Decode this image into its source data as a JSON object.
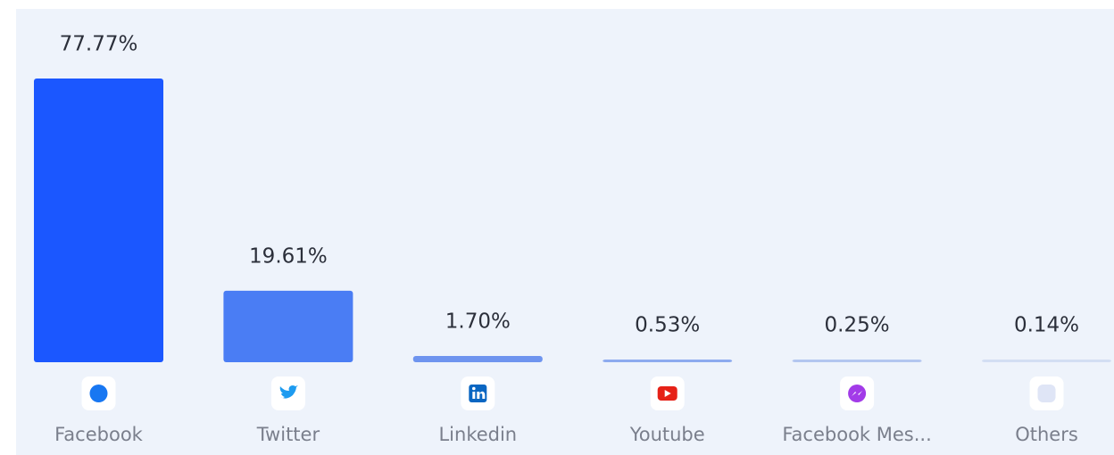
{
  "chart_data": {
    "type": "bar",
    "categories": [
      "Facebook",
      "Twitter",
      "Linkedin",
      "Youtube",
      "Facebook Mes...",
      "Others"
    ],
    "values": [
      77.77,
      19.61,
      1.7,
      0.53,
      0.25,
      0.14
    ],
    "value_labels": [
      "77.77%",
      "19.61%",
      "1.70%",
      "0.53%",
      "0.25%",
      "0.14%"
    ],
    "colors": [
      "#1b57ff",
      "#4a7df4",
      "#6e94ef",
      "#8dabef",
      "#b3c6f0",
      "#d3def3"
    ]
  }
}
